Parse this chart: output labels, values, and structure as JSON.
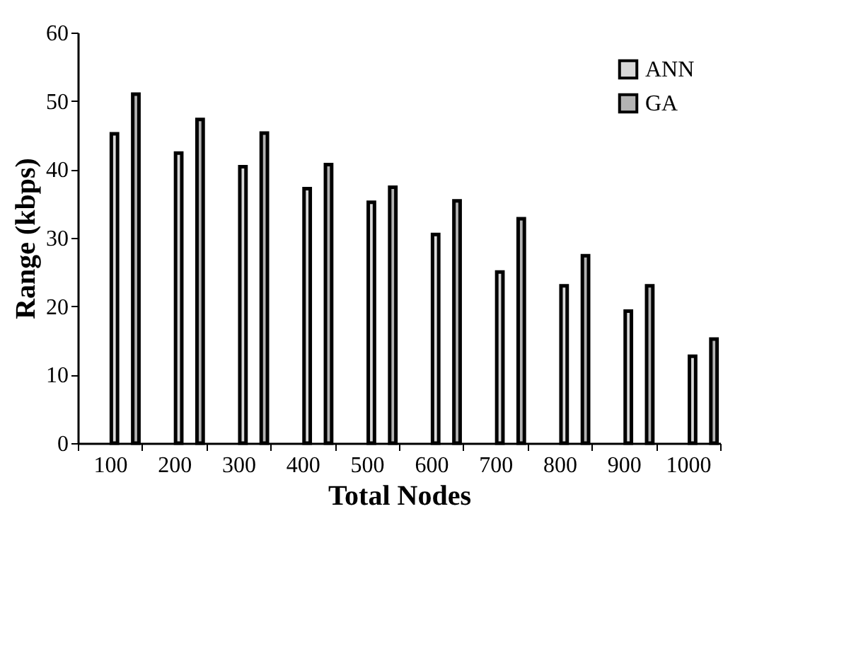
{
  "chart_data": {
    "type": "bar",
    "xlabel": "Total Nodes",
    "ylabel": "Range (kbps)",
    "categories": [
      "100",
      "200",
      "300",
      "400",
      "500",
      "600",
      "700",
      "800",
      "900",
      "1000"
    ],
    "series": [
      {
        "name": "ANN",
        "color": "#d9d9d9",
        "values": [
          45.2,
          42.4,
          40.4,
          37.2,
          35.2,
          30.5,
          25.0,
          23.0,
          19.3,
          12.7
        ]
      },
      {
        "name": "GA",
        "color": "#b3b3b3",
        "values": [
          51.0,
          47.3,
          45.3,
          40.7,
          37.4,
          35.4,
          32.8,
          27.4,
          23.0,
          15.2
        ]
      }
    ],
    "ylim": [
      0,
      60
    ],
    "yticks": [
      0,
      10,
      20,
      30,
      40,
      50,
      60
    ],
    "grid": false,
    "legend": "top right"
  }
}
